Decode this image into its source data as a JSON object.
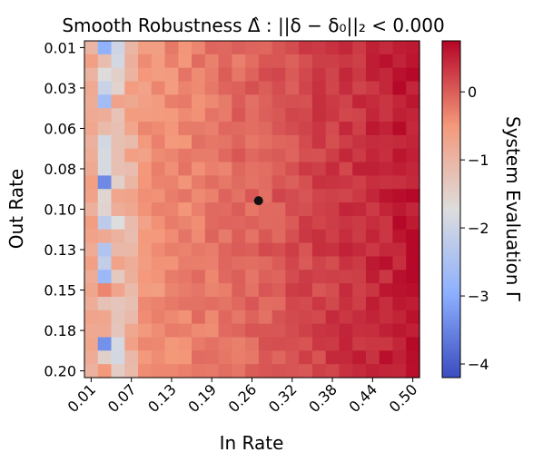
{
  "chart_data": {
    "type": "heatmap",
    "title": "Smooth Robustness Δ̂ : ||δ − δ₀||₂ < 0.000",
    "xlabel": "In Rate",
    "ylabel": "Out Rate",
    "colorbar_label": "System Evaluation Γ",
    "colormap": "coolwarm",
    "x_tick_labels": [
      "0.01",
      "0.07",
      "0.13",
      "0.19",
      "0.26",
      "0.32",
      "0.38",
      "0.44",
      "0.50"
    ],
    "y_tick_labels": [
      "0.01",
      "0.03",
      "0.06",
      "0.08",
      "0.10",
      "0.13",
      "0.15",
      "0.18",
      "0.20"
    ],
    "colorbar_ticks": [
      0,
      -1,
      -2,
      -3,
      -4
    ],
    "color_range": [
      -4.2,
      0.75
    ],
    "grid_cols": 25,
    "grid_rows": 25,
    "marker": {
      "x": 0.265,
      "y": 0.1
    },
    "colors": {
      "cold": "#3b4cc0",
      "neutral": "#dddddd",
      "warm": "#b40426",
      "marker": "#111111"
    }
  }
}
